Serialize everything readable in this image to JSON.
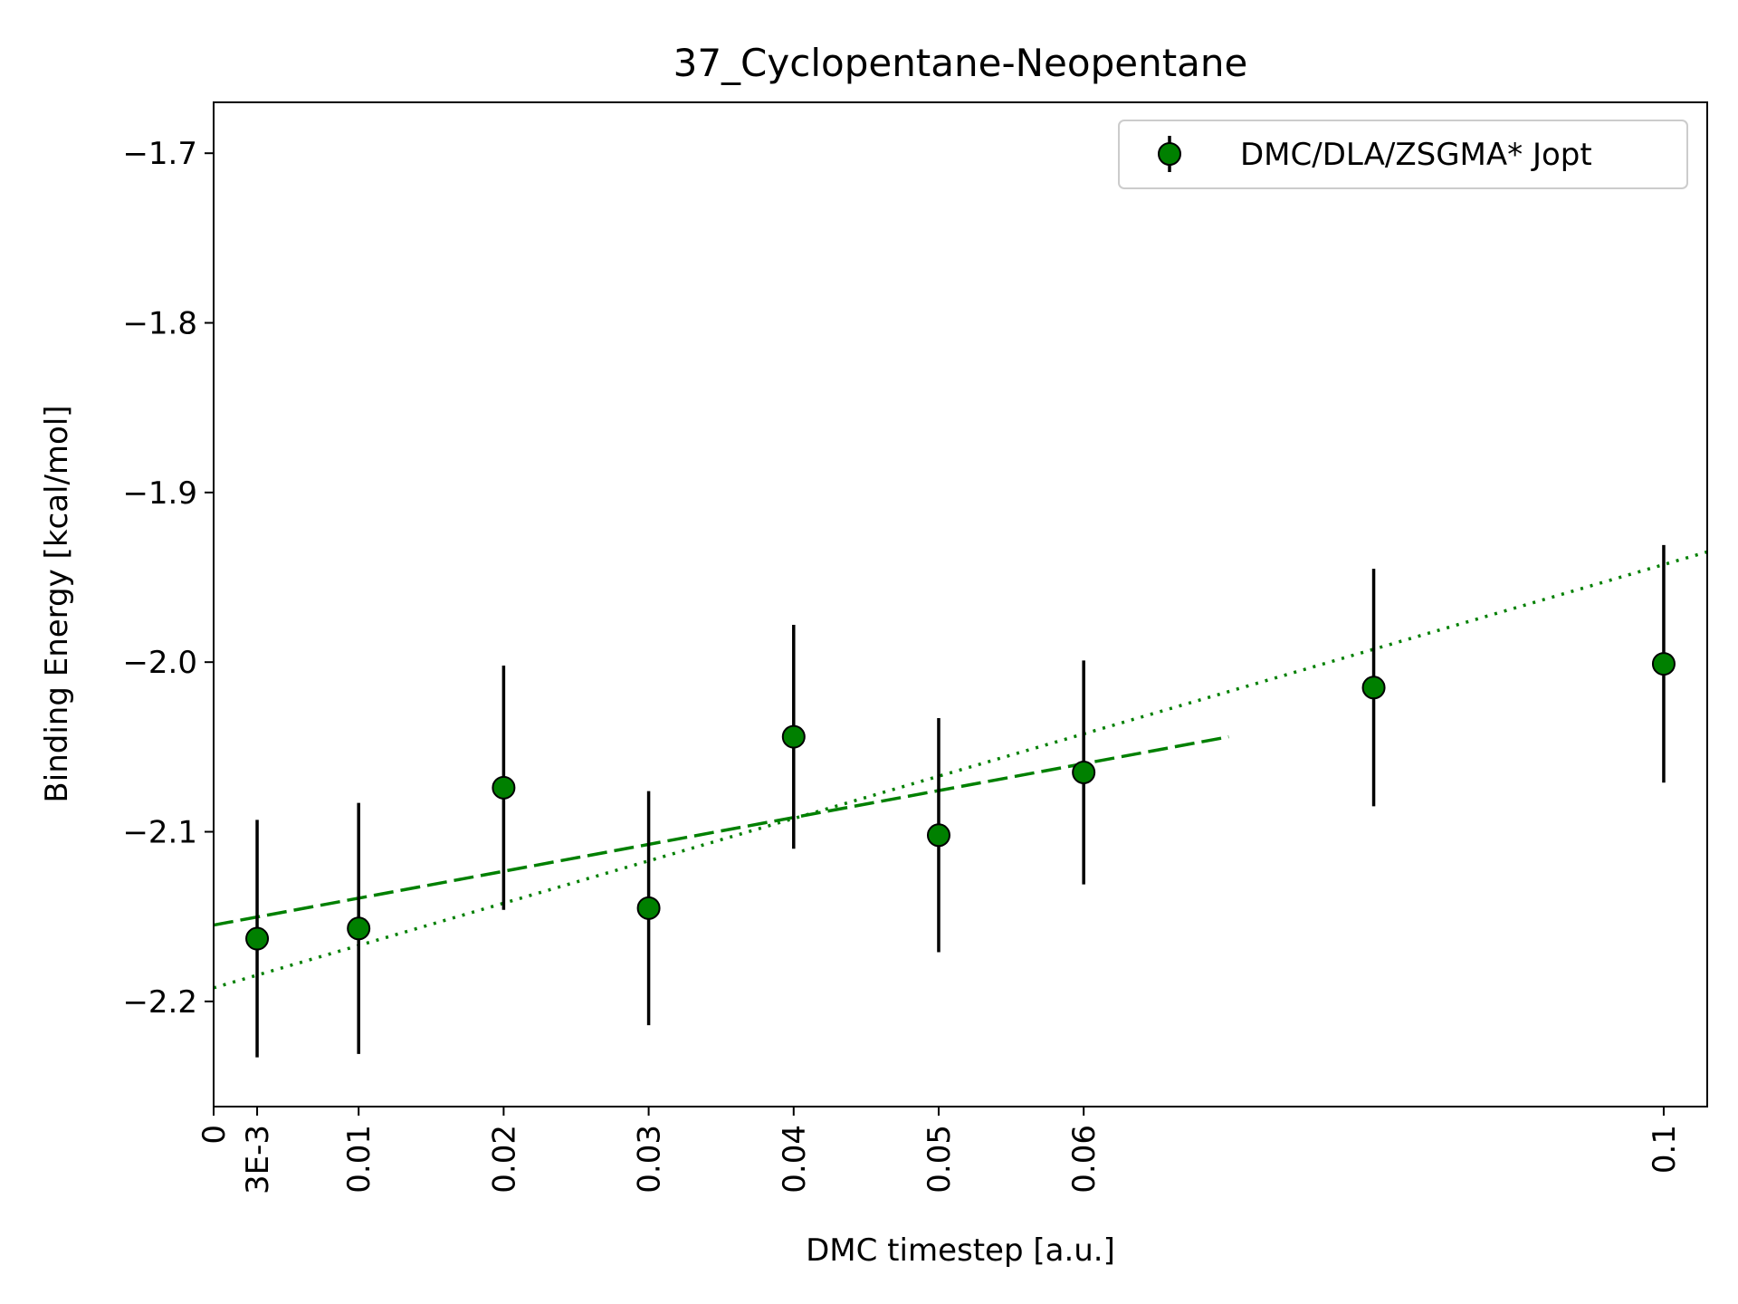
{
  "chart_data": {
    "type": "scatter",
    "title": "37_Cyclopentane-Neopentane",
    "xlabel": "DMC timestep [a.u.]",
    "ylabel": "Binding Energy [kcal/mol]",
    "xlim": [
      0,
      0.103
    ],
    "ylim": [
      -2.262,
      -1.67
    ],
    "x_ticks": [
      {
        "value": 0,
        "label": "0"
      },
      {
        "value": 0.003,
        "label": "3E-3"
      },
      {
        "value": 0.01,
        "label": "0.01"
      },
      {
        "value": 0.02,
        "label": "0.02"
      },
      {
        "value": 0.03,
        "label": "0.03"
      },
      {
        "value": 0.04,
        "label": "0.04"
      },
      {
        "value": 0.05,
        "label": "0.05"
      },
      {
        "value": 0.06,
        "label": "0.06"
      },
      {
        "value": 0.1,
        "label": "0.1"
      }
    ],
    "y_ticks": [
      {
        "value": -2.2,
        "label": "−2.2"
      },
      {
        "value": -2.1,
        "label": "−2.1"
      },
      {
        "value": -2.0,
        "label": "−2.0"
      },
      {
        "value": -1.9,
        "label": "−1.9"
      },
      {
        "value": -1.8,
        "label": "−1.8"
      },
      {
        "value": -1.7,
        "label": "−1.7"
      }
    ],
    "legend_position": "top-right",
    "grid": false,
    "series": [
      {
        "name": "DMC/DLA/ZSGMA* Jopt",
        "color": "#008000",
        "error_color": "#000000",
        "points": [
          {
            "x": 0.003,
            "y": -2.163,
            "err": 0.07
          },
          {
            "x": 0.01,
            "y": -2.157,
            "err": 0.074
          },
          {
            "x": 0.02,
            "y": -2.074,
            "err": 0.072
          },
          {
            "x": 0.03,
            "y": -2.145,
            "err": 0.069
          },
          {
            "x": 0.04,
            "y": -2.044,
            "err": 0.066
          },
          {
            "x": 0.05,
            "y": -2.102,
            "err": 0.069
          },
          {
            "x": 0.06,
            "y": -2.065,
            "err": 0.066
          },
          {
            "x": 0.08,
            "y": -2.015,
            "err": 0.07
          },
          {
            "x": 0.1,
            "y": -2.001,
            "err": 0.07
          }
        ]
      }
    ],
    "fits": [
      {
        "style": "dashed",
        "color": "#008000",
        "x": [
          0,
          0.07
        ],
        "y": [
          -2.155,
          -2.044
        ]
      },
      {
        "style": "dotted",
        "color": "#008000",
        "x": [
          0,
          0.103
        ],
        "y": [
          -2.192,
          -1.935
        ]
      }
    ]
  }
}
